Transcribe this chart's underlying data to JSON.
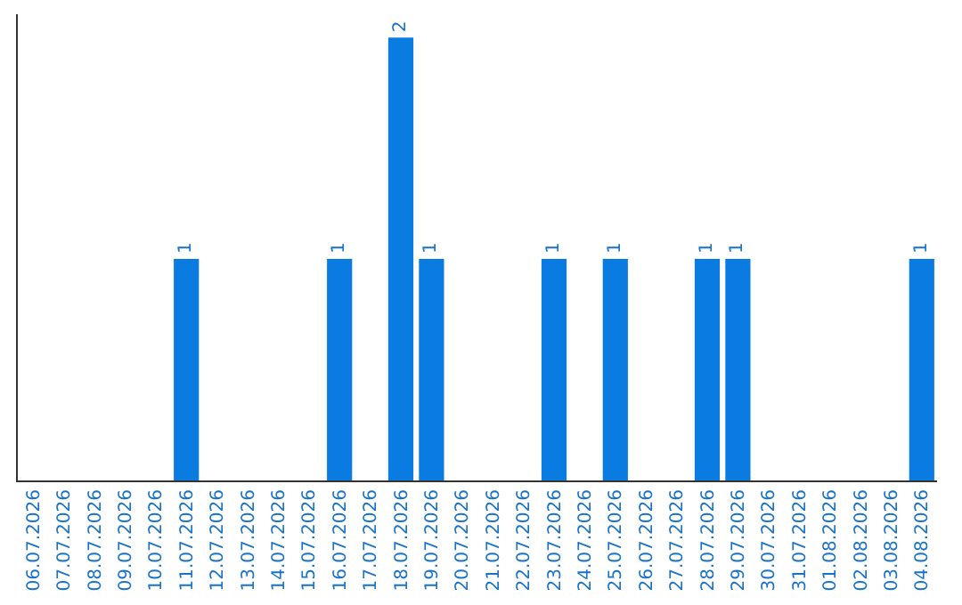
{
  "chart_data": {
    "type": "bar",
    "categories": [
      "06.07.2026",
      "07.07.2026",
      "08.07.2026",
      "09.07.2026",
      "10.07.2026",
      "11.07.2026",
      "12.07.2026",
      "13.07.2026",
      "14.07.2026",
      "15.07.2026",
      "16.07.2026",
      "17.07.2026",
      "18.07.2026",
      "19.07.2026",
      "20.07.2026",
      "21.07.2026",
      "22.07.2026",
      "23.07.2026",
      "24.07.2026",
      "25.07.2026",
      "26.07.2026",
      "27.07.2026",
      "28.07.2026",
      "29.07.2026",
      "30.07.2026",
      "31.07.2026",
      "01.08.2026",
      "02.08.2026",
      "03.08.2026",
      "04.08.2026"
    ],
    "values": [
      0,
      0,
      0,
      0,
      0,
      1,
      0,
      0,
      0,
      0,
      1,
      0,
      2,
      1,
      0,
      0,
      0,
      1,
      0,
      1,
      0,
      0,
      1,
      1,
      0,
      0,
      0,
      0,
      0,
      1
    ],
    "value_labels": [
      null,
      null,
      null,
      null,
      null,
      "1",
      null,
      null,
      null,
      null,
      "1",
      null,
      "2",
      "1",
      null,
      null,
      null,
      "1",
      null,
      "1",
      null,
      null,
      "1",
      "1",
      null,
      null,
      null,
      null,
      null,
      "1"
    ],
    "color": "#0a7be0",
    "tick_labels": "x",
    "legend": false
  }
}
